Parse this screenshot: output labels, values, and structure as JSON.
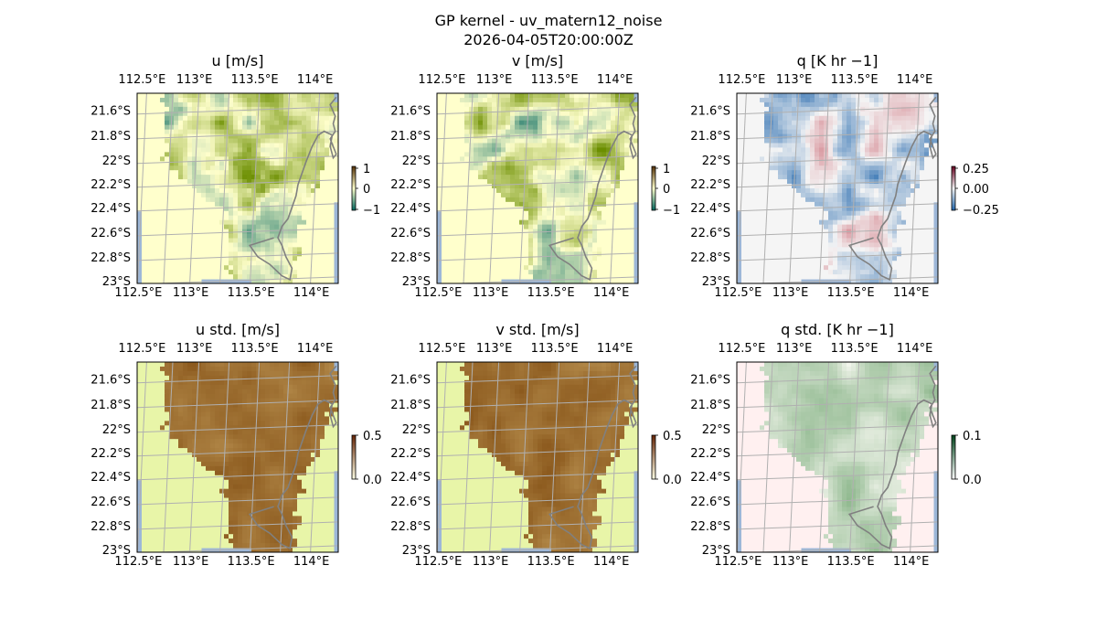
{
  "figure": {
    "title_line1": "GP kernel - uv_matern12_noise",
    "title_line2": "2026-04-05T20:00:00Z"
  },
  "lon_ticks": [
    "112.5°E",
    "113°E",
    "113.5°E",
    "114°E"
  ],
  "lat_ticks": [
    "21.6°S",
    "21.8°S",
    "22°S",
    "22.2°S",
    "22.4°S",
    "22.6°S",
    "22.8°S",
    "23°S"
  ],
  "panels": [
    {
      "key": "u",
      "title": "u [m/s]",
      "colormap": "brown-yellow-teal",
      "cbar_ticks": [
        "1",
        "0",
        "−1"
      ],
      "colors": {
        "low": "#01665e",
        "mid": "#ffffcc",
        "high": "#6b8e00"
      }
    },
    {
      "key": "v",
      "title": "v [m/s]",
      "colormap": "brown-yellow-teal",
      "cbar_ticks": [
        "1",
        "0",
        "−1"
      ],
      "colors": {
        "low": "#01665e",
        "mid": "#ffffcc",
        "high": "#6b8e00"
      }
    },
    {
      "key": "q",
      "title": "q [K hr −1]",
      "colormap": "red-white-blue",
      "cbar_ticks": [
        "0.25",
        "0.00",
        "−0.25"
      ],
      "colors": {
        "low": "#2166ac",
        "mid": "#f5f5f5",
        "high": "#b2182b"
      }
    },
    {
      "key": "u_std",
      "title": "u std. [m/s]",
      "colormap": "yellow-brown",
      "cbar_ticks": [
        "0.5",
        "0.0"
      ],
      "colors": {
        "low": "#e8f5a8",
        "high": "#8c5a1e"
      }
    },
    {
      "key": "v_std",
      "title": "v std. [m/s]",
      "colormap": "yellow-brown",
      "cbar_ticks": [
        "0.5",
        "0.0"
      ],
      "colors": {
        "low": "#e8f5a8",
        "high": "#8c5a1e"
      }
    },
    {
      "key": "q_std",
      "title": "q std. [K hr −1]",
      "colormap": "pink-green",
      "cbar_ticks": [
        "0.1",
        "0.0"
      ],
      "colors": {
        "low": "#fff0f0",
        "high": "#2e7d32"
      }
    }
  ],
  "colors": {
    "ocean": "#9db7d8",
    "grid": "#b0b0b0",
    "coast": "#808080",
    "axes": "#000000"
  }
}
